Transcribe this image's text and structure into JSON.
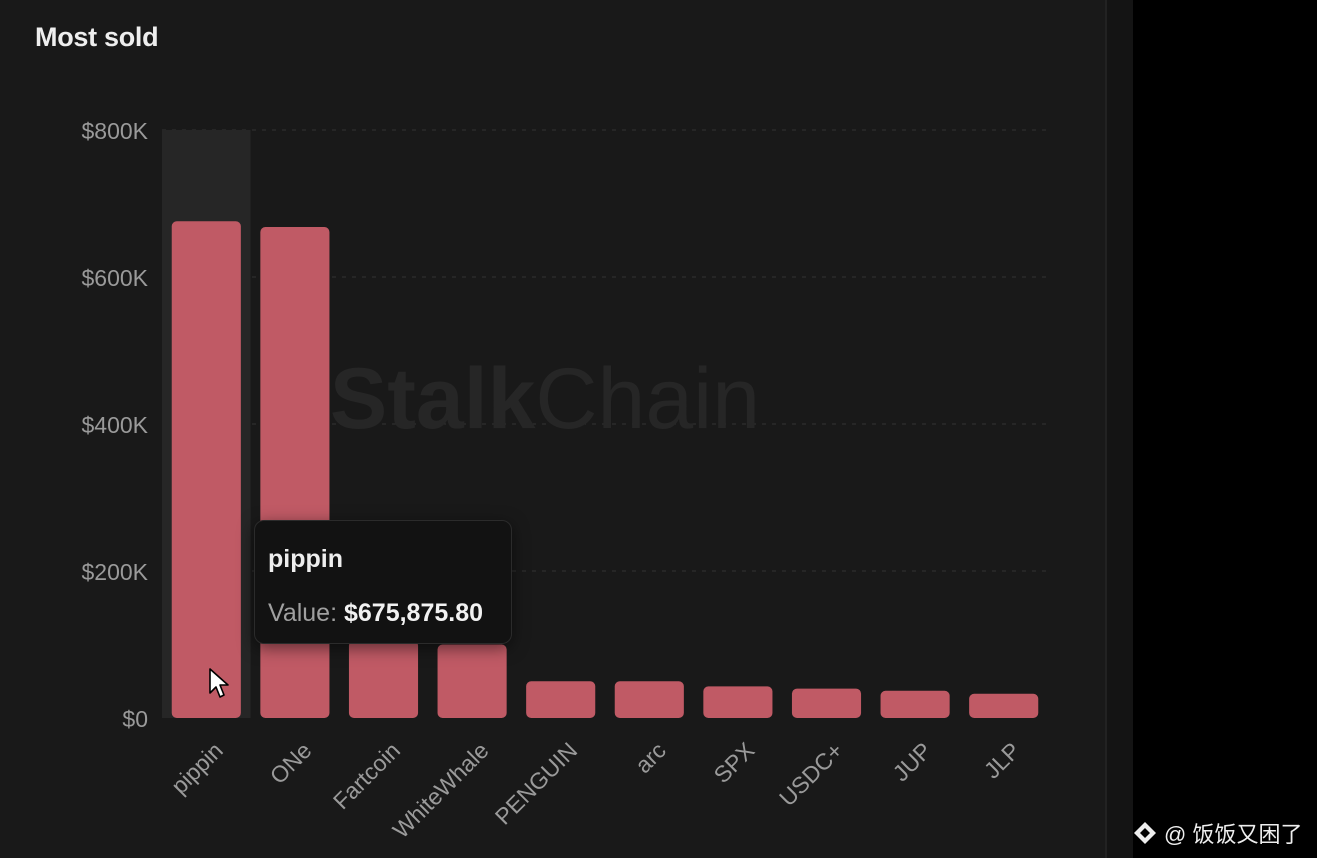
{
  "title": "Most sold",
  "watermark": {
    "strong": "Stalk",
    "light": "Chain"
  },
  "tooltip": {
    "title": "pippin",
    "label": "Value:",
    "value": "$675,875.80"
  },
  "footer_credit": "@ 饭饭又困了",
  "colors": {
    "bar": "#c05a65",
    "hover_band": "#262626",
    "grid": "#333333",
    "tick_label": "#9a9a9a"
  },
  "chart_data": {
    "type": "bar",
    "title": "Most sold",
    "categories": [
      "pippin",
      "ONe",
      "Fartcoin",
      "WhiteWhale",
      "PENGUIN",
      "arc",
      "SPX",
      "USDC+",
      "JUP",
      "JLP"
    ],
    "values": [
      675875.8,
      668000,
      105000,
      100000,
      50000,
      50000,
      43000,
      40000,
      37000,
      33000
    ],
    "ylim": [
      0,
      800000
    ],
    "y_ticks": [
      0,
      200000,
      400000,
      600000,
      800000
    ],
    "y_tick_labels": [
      "$0",
      "$200K",
      "$400K",
      "$600K",
      "$800K"
    ],
    "grid": true,
    "highlighted": "pippin"
  }
}
